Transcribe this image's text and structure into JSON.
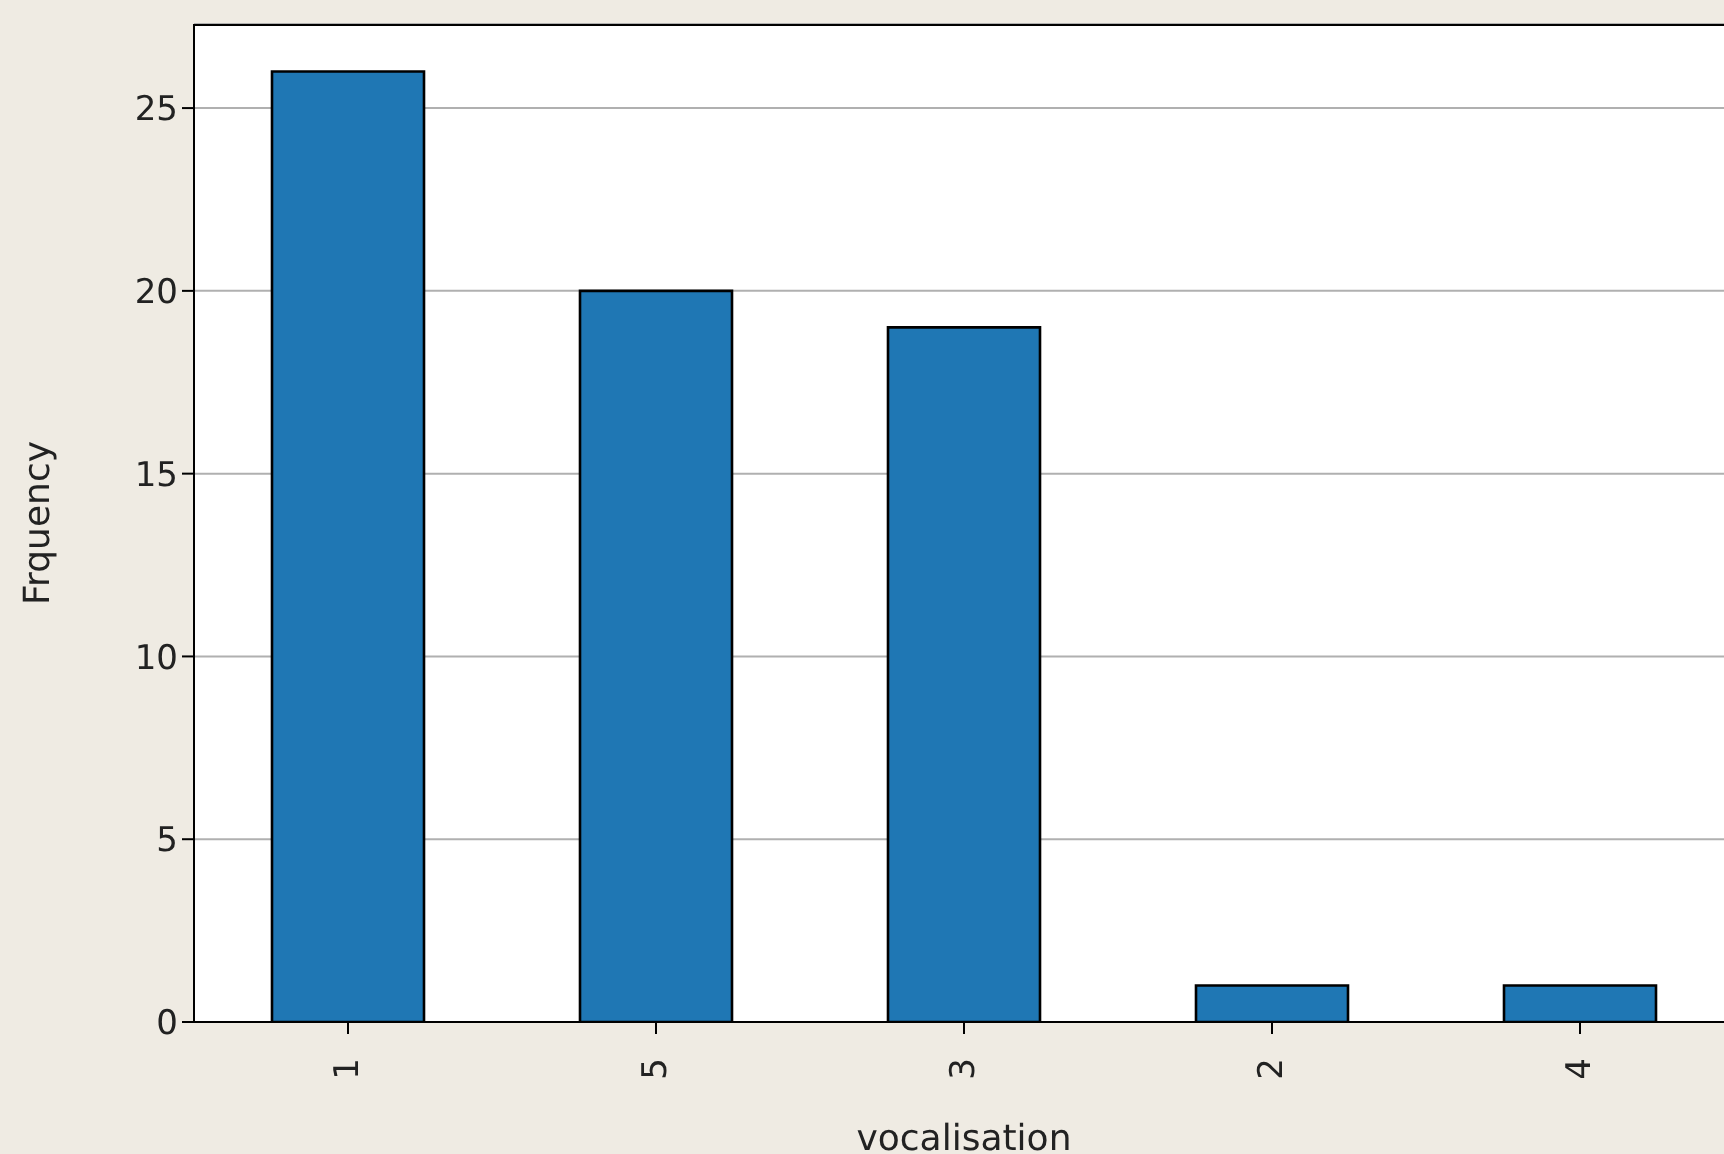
{
  "chart_data": {
    "type": "bar",
    "xlabel": "vocalisation",
    "ylabel": "Frquency",
    "categories": [
      "1",
      "5",
      "3",
      "2",
      "4"
    ],
    "values": [
      26,
      20,
      19,
      1,
      1
    ],
    "color": "#1f77b4",
    "ylim": [
      0,
      27.3
    ],
    "yticks": [
      0,
      5,
      10,
      15,
      20,
      25
    ],
    "grid": "y",
    "legend": false
  }
}
